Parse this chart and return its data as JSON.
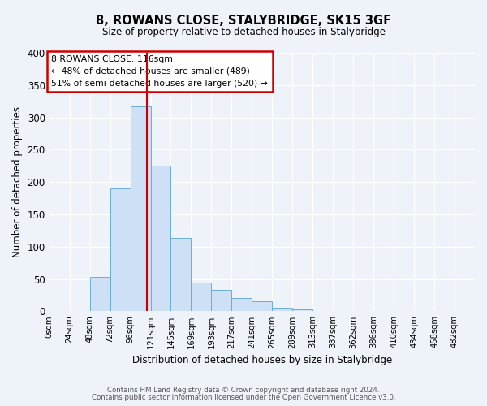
{
  "title1": "8, ROWANS CLOSE, STALYBRIDGE, SK15 3GF",
  "title2": "Size of property relative to detached houses in Stalybridge",
  "xlabel": "Distribution of detached houses by size in Stalybridge",
  "ylabel": "Number of detached properties",
  "bin_edges": [
    0,
    24,
    48,
    72,
    96,
    120,
    144,
    168,
    192,
    216,
    240,
    264,
    288,
    312,
    336,
    360,
    384,
    408,
    432,
    456,
    480,
    504
  ],
  "bin_labels": [
    "0sqm",
    "24sqm",
    "48sqm",
    "72sqm",
    "96sqm",
    "121sqm",
    "145sqm",
    "169sqm",
    "193sqm",
    "217sqm",
    "241sqm",
    "265sqm",
    "289sqm",
    "313sqm",
    "337sqm",
    "362sqm",
    "386sqm",
    "410sqm",
    "434sqm",
    "458sqm",
    "482sqm"
  ],
  "counts": [
    0,
    0,
    53,
    190,
    317,
    226,
    114,
    45,
    33,
    21,
    15,
    5,
    3,
    0,
    0,
    0,
    0,
    0,
    0,
    0,
    0
  ],
  "bar_color": "#cde0f5",
  "bar_edge_color": "#6aaed6",
  "vline_x": 116,
  "vline_color": "#cc0000",
  "annotation_title": "8 ROWANS CLOSE: 116sqm",
  "annotation_line1": "← 48% of detached houses are smaller (489)",
  "annotation_line2": "51% of semi-detached houses are larger (520) →",
  "annotation_box_color": "#ffffff",
  "annotation_box_edge": "#cc0000",
  "ylim": [
    0,
    400
  ],
  "yticks": [
    0,
    50,
    100,
    150,
    200,
    250,
    300,
    350,
    400
  ],
  "background_color": "#eef2f9",
  "footer1": "Contains HM Land Registry data © Crown copyright and database right 2024.",
  "footer2": "Contains public sector information licensed under the Open Government Licence v3.0."
}
